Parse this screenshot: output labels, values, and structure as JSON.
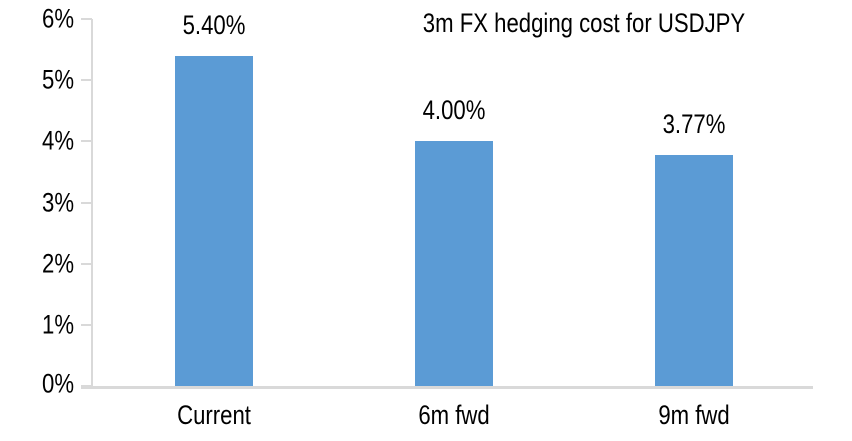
{
  "chart_data": {
    "type": "bar",
    "title": "3m FX hedging cost for USDJPY",
    "categories": [
      "Current",
      "6m fwd",
      "9m fwd"
    ],
    "values": [
      5.4,
      4.0,
      3.77
    ],
    "data_labels": [
      "5.40%",
      "4.00%",
      "3.77%"
    ],
    "y_ticks_top_to_bottom": [
      "6%",
      "5%",
      "4%",
      "3%",
      "2%",
      "1%",
      "0%"
    ],
    "xlabel": "",
    "ylabel": "",
    "ylim": [
      0,
      6
    ],
    "grid": false,
    "legend": false,
    "bar_color": "#5B9BD5",
    "axis_color": "#D9D9D9",
    "text_color": "#000000",
    "background_color": "#FFFFFF"
  }
}
